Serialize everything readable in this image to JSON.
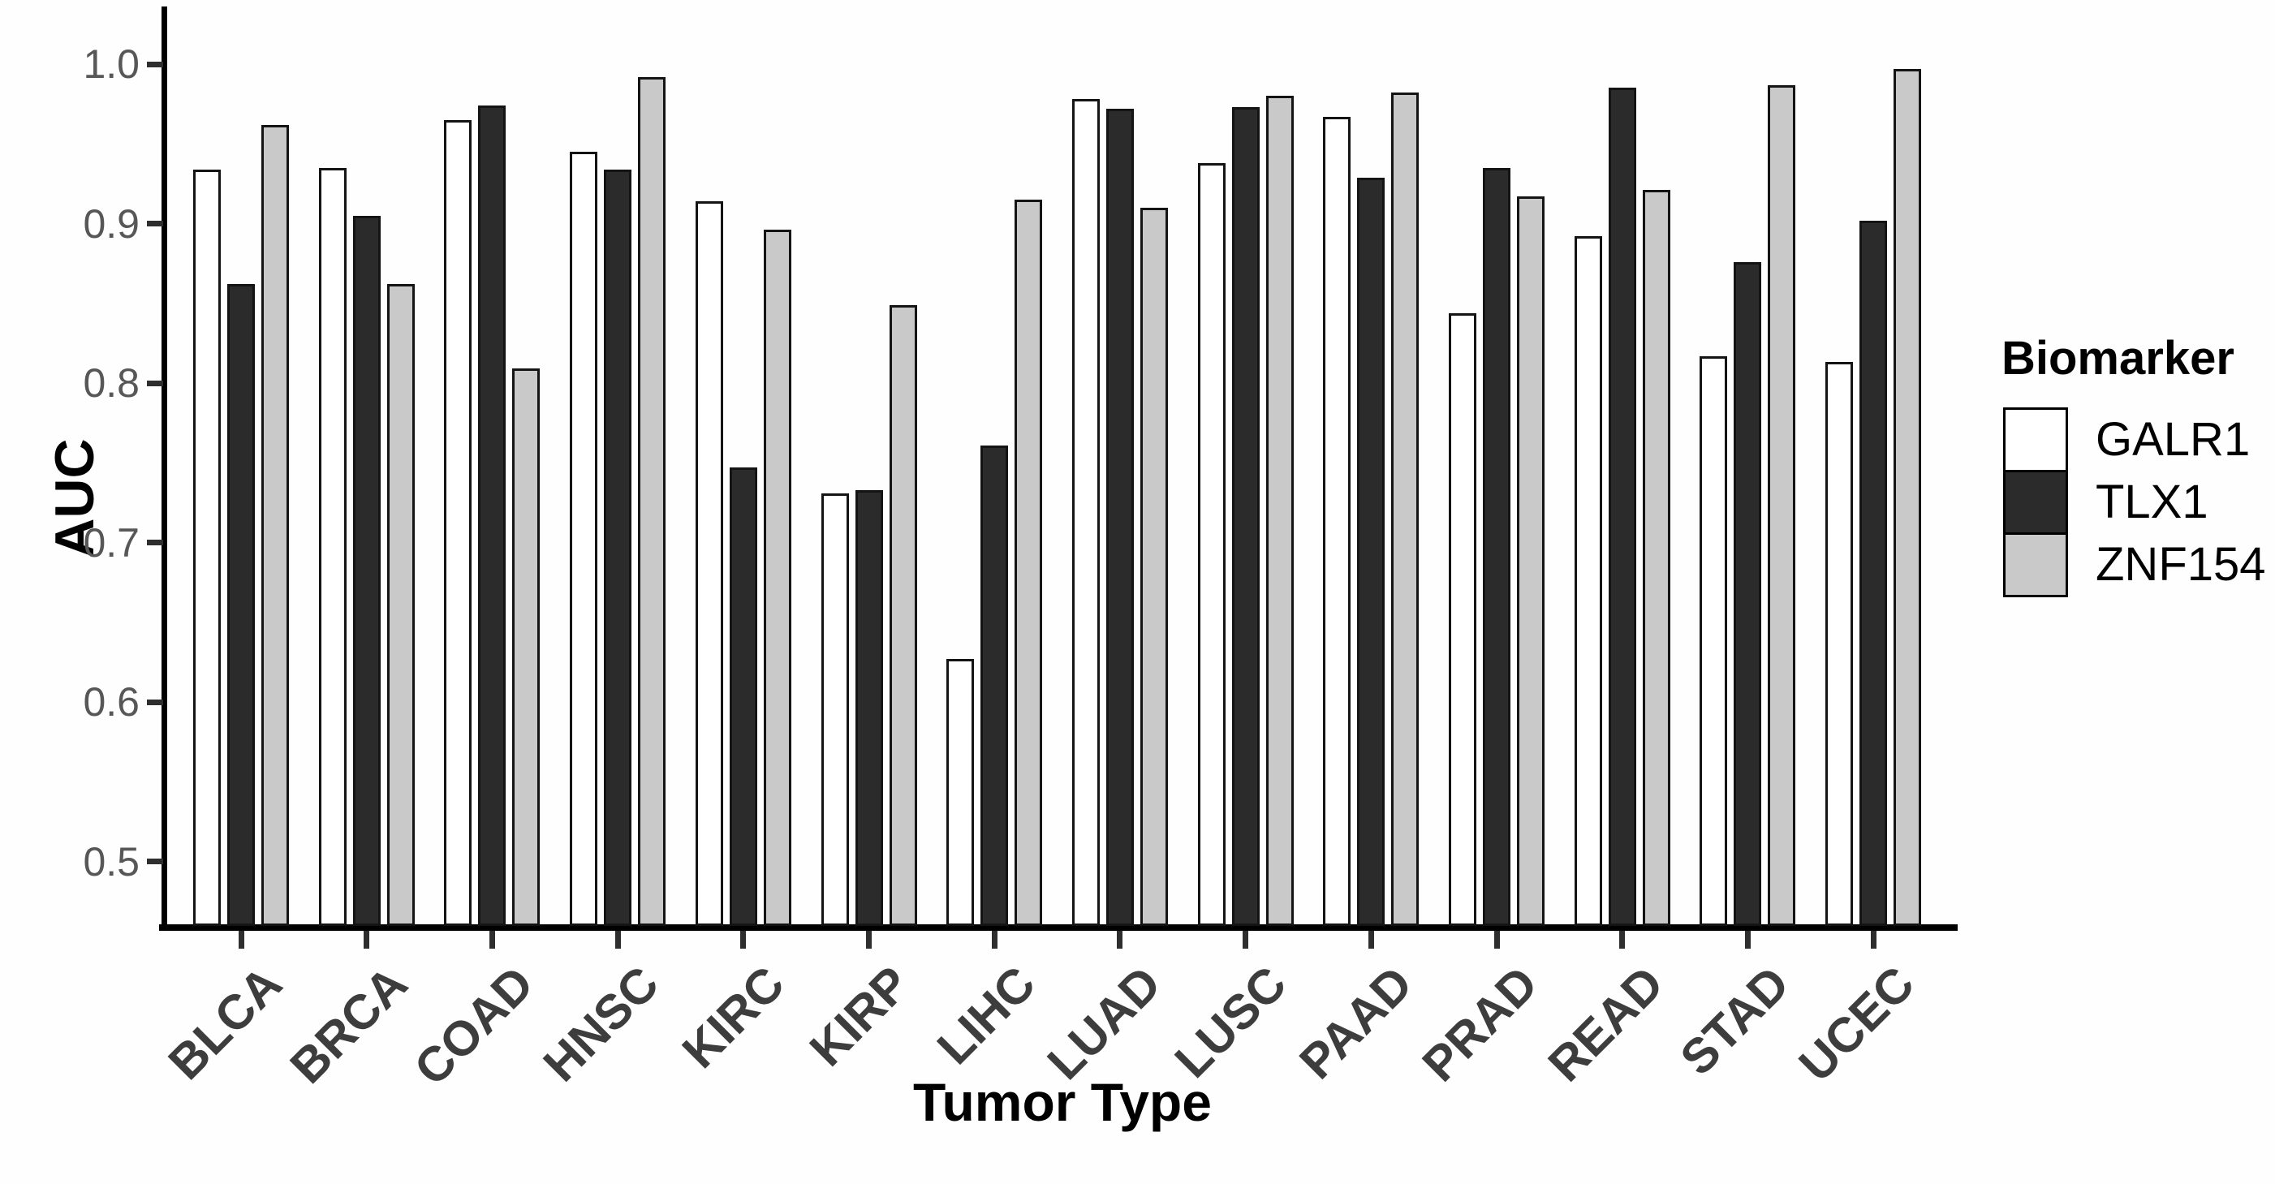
{
  "figure": {
    "y_axis_title": "AUC",
    "x_axis_title": "Tumor Type",
    "legend_title": "Biomarker"
  },
  "chart_data": {
    "type": "bar",
    "title": "",
    "xlabel": "Tumor Type",
    "ylabel": "AUC",
    "ylim": [
      0.459,
      1.035
    ],
    "yticks": [
      1.0,
      0.9,
      0.8,
      0.7,
      0.6,
      0.5
    ],
    "ytick_labels": [
      "1.0",
      "0.9",
      "0.8",
      "0.7",
      "0.6",
      "0.5"
    ],
    "grid": false,
    "legend_position": "right",
    "legend_title": "Biomarker",
    "categories": [
      "BLCA",
      "BRCA",
      "COAD",
      "HNSC",
      "KIRC",
      "KIRP",
      "LIHC",
      "LUAD",
      "LUSC",
      "PAAD",
      "PRAD",
      "READ",
      "STAD",
      "UCEC"
    ],
    "series": [
      {
        "name": "GALR1",
        "color": "#ffffff",
        "values": [
          0.934,
          0.935,
          0.965,
          0.945,
          0.914,
          0.731,
          0.627,
          0.978,
          0.938,
          0.967,
          0.844,
          0.892,
          0.817,
          0.813
        ]
      },
      {
        "name": "TLX1",
        "color": "#2b2b2b",
        "values": [
          0.862,
          0.905,
          0.974,
          0.934,
          0.747,
          0.733,
          0.761,
          0.972,
          0.973,
          0.929,
          0.935,
          0.985,
          0.876,
          0.902
        ]
      },
      {
        "name": "ZNF154",
        "color": "#c9c9c9",
        "values": [
          0.962,
          0.862,
          0.809,
          0.992,
          0.896,
          0.849,
          0.915,
          0.91,
          0.98,
          0.982,
          0.917,
          0.921,
          0.987,
          0.997
        ]
      }
    ],
    "bar_outline_color": "#141414",
    "axis_color": "#000000"
  }
}
